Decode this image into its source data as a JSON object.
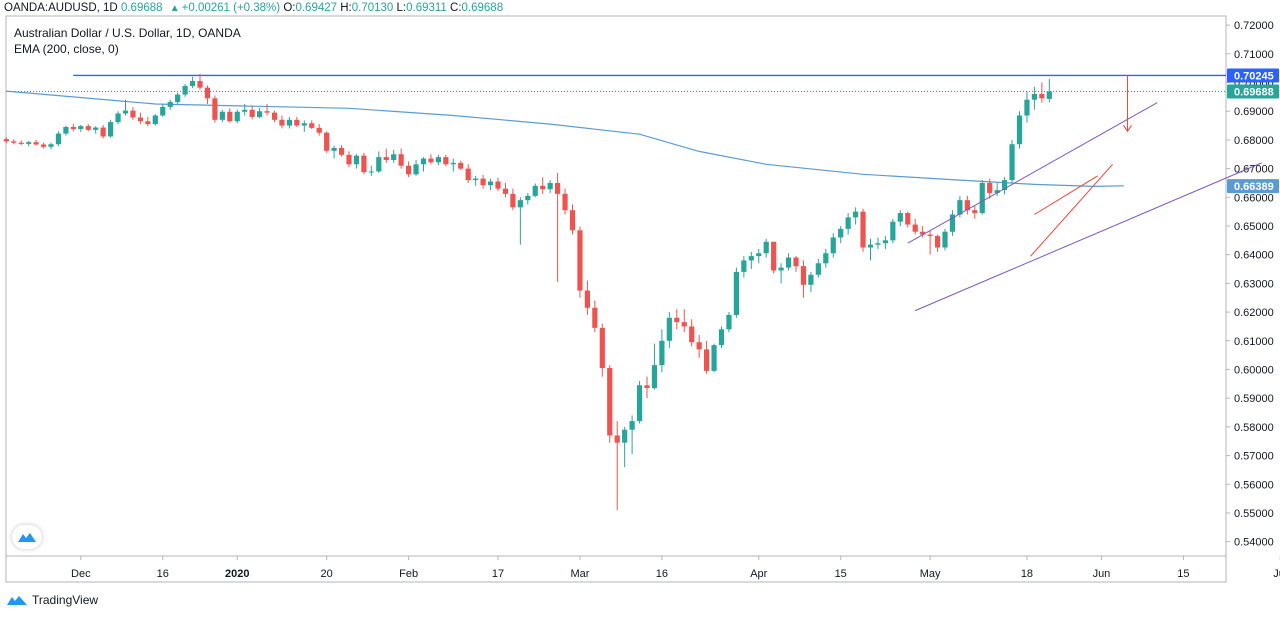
{
  "header": {
    "symbol": "OANDA:AUDUSD, 1D",
    "last": "0.69688",
    "change": "+0.00261 (+0.38%)",
    "o_label": "O:",
    "o": "0.69427",
    "h_label": "H:",
    "h": "0.70130",
    "l_label": "L:",
    "l": "0.69311",
    "c_label": "C:",
    "c": "0.69688"
  },
  "subtitle": "Australian Dollar / U.S. Dollar, 1D, OANDA",
  "ema_legend": "EMA (200, close, 0)",
  "footer": {
    "brand": "TradingView"
  },
  "colors": {
    "up": "#26a69a",
    "down": "#ef5350",
    "ema": "#5b9bd5",
    "hline": "#2962ff",
    "channel": "#7e57c2",
    "wedge": "#f44336",
    "grid": "#e0e3eb"
  },
  "chart_data": {
    "type": "candlestick",
    "ylim": [
      0.535,
      0.723
    ],
    "y_ticks": [
      "0.72000",
      "0.71000",
      "0.70000",
      "0.69000",
      "0.68000",
      "0.67000",
      "0.66000",
      "0.65000",
      "0.64000",
      "0.63000",
      "0.62000",
      "0.61000",
      "0.60000",
      "0.59000",
      "0.58000",
      "0.57000",
      "0.56000",
      "0.55000",
      "0.54000"
    ],
    "x_ticks": [
      {
        "label": "Dec",
        "i": 10
      },
      {
        "label": "16",
        "i": 21
      },
      {
        "label": "2020",
        "i": 31,
        "bold": true
      },
      {
        "label": "20",
        "i": 43
      },
      {
        "label": "Feb",
        "i": 54
      },
      {
        "label": "17",
        "i": 66
      },
      {
        "label": "Mar",
        "i": 77
      },
      {
        "label": "16",
        "i": 88
      },
      {
        "label": "Apr",
        "i": 101
      },
      {
        "label": "15",
        "i": 112
      },
      {
        "label": "May",
        "i": 124
      },
      {
        "label": "18",
        "i": 137
      },
      {
        "label": "Jun",
        "i": 147
      },
      {
        "label": "15",
        "i": 158
      },
      {
        "label": "Jul",
        "i": 171
      }
    ],
    "price_labels": [
      {
        "value": 0.70245,
        "text": "0.70245",
        "color": "#2962ff"
      },
      {
        "value": 0.69688,
        "text": "0.69688",
        "color": "#26a69a"
      },
      {
        "value": 0.66389,
        "text": "0.66389",
        "color": "#5b9bd5"
      }
    ],
    "horizontal_line": 0.70245,
    "last_price_line": 0.69688,
    "candles": [
      {
        "o": 0.6803,
        "h": 0.681,
        "l": 0.6788,
        "c": 0.6795
      },
      {
        "o": 0.6795,
        "h": 0.6802,
        "l": 0.6785,
        "c": 0.679
      },
      {
        "o": 0.679,
        "h": 0.6798,
        "l": 0.6782,
        "c": 0.6786
      },
      {
        "o": 0.6786,
        "h": 0.6796,
        "l": 0.6778,
        "c": 0.6792
      },
      {
        "o": 0.6792,
        "h": 0.68,
        "l": 0.678,
        "c": 0.6784
      },
      {
        "o": 0.6784,
        "h": 0.679,
        "l": 0.677,
        "c": 0.6776
      },
      {
        "o": 0.6776,
        "h": 0.679,
        "l": 0.6768,
        "c": 0.6785
      },
      {
        "o": 0.6785,
        "h": 0.683,
        "l": 0.6778,
        "c": 0.6822
      },
      {
        "o": 0.6822,
        "h": 0.685,
        "l": 0.6815,
        "c": 0.6845
      },
      {
        "o": 0.6845,
        "h": 0.6856,
        "l": 0.683,
        "c": 0.6838
      },
      {
        "o": 0.6838,
        "h": 0.6852,
        "l": 0.6828,
        "c": 0.6848
      },
      {
        "o": 0.6848,
        "h": 0.6855,
        "l": 0.683,
        "c": 0.6835
      },
      {
        "o": 0.6835,
        "h": 0.6848,
        "l": 0.6822,
        "c": 0.6843
      },
      {
        "o": 0.6843,
        "h": 0.6852,
        "l": 0.6805,
        "c": 0.6812
      },
      {
        "o": 0.6812,
        "h": 0.687,
        "l": 0.6808,
        "c": 0.6862
      },
      {
        "o": 0.6862,
        "h": 0.69,
        "l": 0.6855,
        "c": 0.6892
      },
      {
        "o": 0.6892,
        "h": 0.694,
        "l": 0.6885,
        "c": 0.6902
      },
      {
        "o": 0.6902,
        "h": 0.6915,
        "l": 0.687,
        "c": 0.6878
      },
      {
        "o": 0.6878,
        "h": 0.6895,
        "l": 0.6855,
        "c": 0.6865
      },
      {
        "o": 0.6865,
        "h": 0.688,
        "l": 0.6848,
        "c": 0.6855
      },
      {
        "o": 0.6855,
        "h": 0.689,
        "l": 0.685,
        "c": 0.6885
      },
      {
        "o": 0.6885,
        "h": 0.6925,
        "l": 0.688,
        "c": 0.6915
      },
      {
        "o": 0.6915,
        "h": 0.694,
        "l": 0.6905,
        "c": 0.6932
      },
      {
        "o": 0.6932,
        "h": 0.6965,
        "l": 0.6925,
        "c": 0.6958
      },
      {
        "o": 0.6958,
        "h": 0.6995,
        "l": 0.695,
        "c": 0.6988
      },
      {
        "o": 0.6988,
        "h": 0.702,
        "l": 0.698,
        "c": 0.7005
      },
      {
        "o": 0.7005,
        "h": 0.703,
        "l": 0.6975,
        "c": 0.6982
      },
      {
        "o": 0.6982,
        "h": 0.699,
        "l": 0.6925,
        "c": 0.6945
      },
      {
        "o": 0.6945,
        "h": 0.6955,
        "l": 0.686,
        "c": 0.687
      },
      {
        "o": 0.687,
        "h": 0.6905,
        "l": 0.6862,
        "c": 0.6898
      },
      {
        "o": 0.6898,
        "h": 0.691,
        "l": 0.686,
        "c": 0.6865
      },
      {
        "o": 0.6865,
        "h": 0.6905,
        "l": 0.6858,
        "c": 0.6898
      },
      {
        "o": 0.6898,
        "h": 0.6925,
        "l": 0.6885,
        "c": 0.6905
      },
      {
        "o": 0.6905,
        "h": 0.6918,
        "l": 0.6872,
        "c": 0.688
      },
      {
        "o": 0.688,
        "h": 0.6912,
        "l": 0.6875,
        "c": 0.69
      },
      {
        "o": 0.69,
        "h": 0.6925,
        "l": 0.6885,
        "c": 0.6895
      },
      {
        "o": 0.6895,
        "h": 0.6902,
        "l": 0.6862,
        "c": 0.687
      },
      {
        "o": 0.687,
        "h": 0.6885,
        "l": 0.684,
        "c": 0.685
      },
      {
        "o": 0.685,
        "h": 0.688,
        "l": 0.684,
        "c": 0.687
      },
      {
        "o": 0.687,
        "h": 0.688,
        "l": 0.6845,
        "c": 0.685
      },
      {
        "o": 0.685,
        "h": 0.6868,
        "l": 0.6828,
        "c": 0.6858
      },
      {
        "o": 0.6858,
        "h": 0.6868,
        "l": 0.6838,
        "c": 0.6842
      },
      {
        "o": 0.6842,
        "h": 0.6855,
        "l": 0.6815,
        "c": 0.6825
      },
      {
        "o": 0.6825,
        "h": 0.683,
        "l": 0.6755,
        "c": 0.6762
      },
      {
        "o": 0.6762,
        "h": 0.678,
        "l": 0.6735,
        "c": 0.6772
      },
      {
        "o": 0.6772,
        "h": 0.6782,
        "l": 0.6742,
        "c": 0.6748
      },
      {
        "o": 0.6748,
        "h": 0.676,
        "l": 0.6705,
        "c": 0.6715
      },
      {
        "o": 0.6715,
        "h": 0.675,
        "l": 0.67,
        "c": 0.6745
      },
      {
        "o": 0.6745,
        "h": 0.6755,
        "l": 0.668,
        "c": 0.6688
      },
      {
        "o": 0.6688,
        "h": 0.671,
        "l": 0.6675,
        "c": 0.669
      },
      {
        "o": 0.669,
        "h": 0.676,
        "l": 0.6685,
        "c": 0.674
      },
      {
        "o": 0.674,
        "h": 0.677,
        "l": 0.672,
        "c": 0.673
      },
      {
        "o": 0.673,
        "h": 0.6765,
        "l": 0.672,
        "c": 0.675
      },
      {
        "o": 0.675,
        "h": 0.677,
        "l": 0.67,
        "c": 0.671
      },
      {
        "o": 0.671,
        "h": 0.6725,
        "l": 0.667,
        "c": 0.668
      },
      {
        "o": 0.668,
        "h": 0.673,
        "l": 0.6675,
        "c": 0.6715
      },
      {
        "o": 0.6715,
        "h": 0.674,
        "l": 0.669,
        "c": 0.6735
      },
      {
        "o": 0.6735,
        "h": 0.675,
        "l": 0.6715,
        "c": 0.6722
      },
      {
        "o": 0.6722,
        "h": 0.6748,
        "l": 0.6712,
        "c": 0.674
      },
      {
        "o": 0.674,
        "h": 0.6748,
        "l": 0.6708,
        "c": 0.6715
      },
      {
        "o": 0.6715,
        "h": 0.6735,
        "l": 0.669,
        "c": 0.672
      },
      {
        "o": 0.672,
        "h": 0.6728,
        "l": 0.6695,
        "c": 0.67
      },
      {
        "o": 0.67,
        "h": 0.6715,
        "l": 0.665,
        "c": 0.666
      },
      {
        "o": 0.666,
        "h": 0.6675,
        "l": 0.664,
        "c": 0.6665
      },
      {
        "o": 0.6665,
        "h": 0.6678,
        "l": 0.663,
        "c": 0.6642
      },
      {
        "o": 0.6642,
        "h": 0.6665,
        "l": 0.6625,
        "c": 0.6655
      },
      {
        "o": 0.6655,
        "h": 0.6668,
        "l": 0.6622,
        "c": 0.663
      },
      {
        "o": 0.663,
        "h": 0.665,
        "l": 0.66,
        "c": 0.6612
      },
      {
        "o": 0.6612,
        "h": 0.663,
        "l": 0.6555,
        "c": 0.6565
      },
      {
        "o": 0.6565,
        "h": 0.66,
        "l": 0.6435,
        "c": 0.659
      },
      {
        "o": 0.659,
        "h": 0.6615,
        "l": 0.6575,
        "c": 0.6605
      },
      {
        "o": 0.6605,
        "h": 0.6648,
        "l": 0.66,
        "c": 0.664
      },
      {
        "o": 0.664,
        "h": 0.667,
        "l": 0.6612,
        "c": 0.6628
      },
      {
        "o": 0.6628,
        "h": 0.666,
        "l": 0.6615,
        "c": 0.665
      },
      {
        "o": 0.665,
        "h": 0.6685,
        "l": 0.6305,
        "c": 0.6612
      },
      {
        "o": 0.6612,
        "h": 0.663,
        "l": 0.654,
        "c": 0.6555
      },
      {
        "o": 0.6555,
        "h": 0.6575,
        "l": 0.647,
        "c": 0.6485
      },
      {
        "o": 0.6485,
        "h": 0.6498,
        "l": 0.625,
        "c": 0.6275
      },
      {
        "o": 0.6275,
        "h": 0.631,
        "l": 0.619,
        "c": 0.6215
      },
      {
        "o": 0.6215,
        "h": 0.624,
        "l": 0.613,
        "c": 0.6145
      },
      {
        "o": 0.6145,
        "h": 0.616,
        "l": 0.5975,
        "c": 0.6005
      },
      {
        "o": 0.6005,
        "h": 0.6015,
        "l": 0.5745,
        "c": 0.577
      },
      {
        "o": 0.577,
        "h": 0.582,
        "l": 0.551,
        "c": 0.5745
      },
      {
        "o": 0.5745,
        "h": 0.58,
        "l": 0.566,
        "c": 0.579
      },
      {
        "o": 0.579,
        "h": 0.584,
        "l": 0.5705,
        "c": 0.582
      },
      {
        "o": 0.582,
        "h": 0.596,
        "l": 0.5812,
        "c": 0.5945
      },
      {
        "o": 0.5945,
        "h": 0.5975,
        "l": 0.59,
        "c": 0.5935
      },
      {
        "o": 0.5935,
        "h": 0.609,
        "l": 0.593,
        "c": 0.6015
      },
      {
        "o": 0.6015,
        "h": 0.614,
        "l": 0.599,
        "c": 0.61
      },
      {
        "o": 0.61,
        "h": 0.62,
        "l": 0.6075,
        "c": 0.618
      },
      {
        "o": 0.618,
        "h": 0.621,
        "l": 0.614,
        "c": 0.6165
      },
      {
        "o": 0.6165,
        "h": 0.621,
        "l": 0.613,
        "c": 0.615
      },
      {
        "o": 0.615,
        "h": 0.6175,
        "l": 0.608,
        "c": 0.6095
      },
      {
        "o": 0.6095,
        "h": 0.612,
        "l": 0.604,
        "c": 0.607
      },
      {
        "o": 0.607,
        "h": 0.61,
        "l": 0.5985,
        "c": 0.5995
      },
      {
        "o": 0.5995,
        "h": 0.609,
        "l": 0.599,
        "c": 0.6085
      },
      {
        "o": 0.6085,
        "h": 0.615,
        "l": 0.6075,
        "c": 0.614
      },
      {
        "o": 0.614,
        "h": 0.62,
        "l": 0.613,
        "c": 0.619
      },
      {
        "o": 0.619,
        "h": 0.6355,
        "l": 0.618,
        "c": 0.634
      },
      {
        "o": 0.634,
        "h": 0.6395,
        "l": 0.632,
        "c": 0.638
      },
      {
        "o": 0.638,
        "h": 0.641,
        "l": 0.635,
        "c": 0.6395
      },
      {
        "o": 0.6395,
        "h": 0.642,
        "l": 0.637,
        "c": 0.6405
      },
      {
        "o": 0.6405,
        "h": 0.6455,
        "l": 0.639,
        "c": 0.6445
      },
      {
        "o": 0.6445,
        "h": 0.6445,
        "l": 0.6335,
        "c": 0.6345
      },
      {
        "o": 0.6345,
        "h": 0.637,
        "l": 0.63,
        "c": 0.6355
      },
      {
        "o": 0.6355,
        "h": 0.6405,
        "l": 0.6345,
        "c": 0.639
      },
      {
        "o": 0.639,
        "h": 0.6395,
        "l": 0.634,
        "c": 0.636
      },
      {
        "o": 0.636,
        "h": 0.638,
        "l": 0.625,
        "c": 0.6295
      },
      {
        "o": 0.6295,
        "h": 0.634,
        "l": 0.627,
        "c": 0.633
      },
      {
        "o": 0.633,
        "h": 0.6385,
        "l": 0.632,
        "c": 0.637
      },
      {
        "o": 0.637,
        "h": 0.642,
        "l": 0.6355,
        "c": 0.6405
      },
      {
        "o": 0.6405,
        "h": 0.6475,
        "l": 0.639,
        "c": 0.646
      },
      {
        "o": 0.646,
        "h": 0.65,
        "l": 0.644,
        "c": 0.649
      },
      {
        "o": 0.649,
        "h": 0.6545,
        "l": 0.647,
        "c": 0.653
      },
      {
        "o": 0.653,
        "h": 0.6565,
        "l": 0.6505,
        "c": 0.655
      },
      {
        "o": 0.655,
        "h": 0.656,
        "l": 0.641,
        "c": 0.6425
      },
      {
        "o": 0.6425,
        "h": 0.6455,
        "l": 0.638,
        "c": 0.6435
      },
      {
        "o": 0.6435,
        "h": 0.646,
        "l": 0.642,
        "c": 0.644
      },
      {
        "o": 0.644,
        "h": 0.6465,
        "l": 0.642,
        "c": 0.645
      },
      {
        "o": 0.645,
        "h": 0.6525,
        "l": 0.644,
        "c": 0.6515
      },
      {
        "o": 0.6515,
        "h": 0.6555,
        "l": 0.65,
        "c": 0.6545
      },
      {
        "o": 0.6545,
        "h": 0.655,
        "l": 0.6495,
        "c": 0.6505
      },
      {
        "o": 0.6505,
        "h": 0.6525,
        "l": 0.647,
        "c": 0.648
      },
      {
        "o": 0.648,
        "h": 0.65,
        "l": 0.646,
        "c": 0.647
      },
      {
        "o": 0.647,
        "h": 0.6485,
        "l": 0.64,
        "c": 0.6465
      },
      {
        "o": 0.6465,
        "h": 0.647,
        "l": 0.641,
        "c": 0.6425
      },
      {
        "o": 0.6425,
        "h": 0.649,
        "l": 0.6415,
        "c": 0.648
      },
      {
        "o": 0.648,
        "h": 0.6555,
        "l": 0.6465,
        "c": 0.654
      },
      {
        "o": 0.654,
        "h": 0.6605,
        "l": 0.653,
        "c": 0.659
      },
      {
        "o": 0.659,
        "h": 0.6605,
        "l": 0.654,
        "c": 0.6555
      },
      {
        "o": 0.6555,
        "h": 0.657,
        "l": 0.6525,
        "c": 0.6545
      },
      {
        "o": 0.6545,
        "h": 0.666,
        "l": 0.654,
        "c": 0.665
      },
      {
        "o": 0.665,
        "h": 0.6665,
        "l": 0.6595,
        "c": 0.6615
      },
      {
        "o": 0.6615,
        "h": 0.665,
        "l": 0.6605,
        "c": 0.6625
      },
      {
        "o": 0.6625,
        "h": 0.667,
        "l": 0.661,
        "c": 0.666
      },
      {
        "o": 0.666,
        "h": 0.68,
        "l": 0.665,
        "c": 0.6785
      },
      {
        "o": 0.6785,
        "h": 0.69,
        "l": 0.677,
        "c": 0.6885
      },
      {
        "o": 0.6885,
        "h": 0.697,
        "l": 0.686,
        "c": 0.694
      },
      {
        "o": 0.694,
        "h": 0.6985,
        "l": 0.6905,
        "c": 0.696
      },
      {
        "o": 0.696,
        "h": 0.7,
        "l": 0.693,
        "c": 0.6945
      },
      {
        "o": 0.6943,
        "h": 0.7013,
        "l": 0.6931,
        "c": 0.6969
      }
    ],
    "ema200": [
      {
        "i": 0,
        "v": 0.697
      },
      {
        "i": 20,
        "v": 0.6925
      },
      {
        "i": 32,
        "v": 0.6918
      },
      {
        "i": 46,
        "v": 0.691
      },
      {
        "i": 60,
        "v": 0.6885
      },
      {
        "i": 73,
        "v": 0.6855
      },
      {
        "i": 85,
        "v": 0.682
      },
      {
        "i": 93,
        "v": 0.676
      },
      {
        "i": 102,
        "v": 0.6715
      },
      {
        "i": 115,
        "v": 0.668
      },
      {
        "i": 128,
        "v": 0.666
      },
      {
        "i": 138,
        "v": 0.6645
      },
      {
        "i": 146,
        "v": 0.6638
      },
      {
        "i": 150,
        "v": 0.664
      }
    ],
    "trendlines": [
      {
        "name": "channel-upper-line",
        "color": "#7e57c2",
        "x1": 121.0,
        "y1": 0.644,
        "x2": 154.5,
        "y2": 0.693
      },
      {
        "name": "channel-lower-line",
        "color": "#7e57c2",
        "x1": 122.0,
        "y1": 0.6205,
        "x2": 168.5,
        "y2": 0.672
      },
      {
        "name": "wedge-upper-line",
        "color": "#f44336",
        "x1": 138.0,
        "y1": 0.654,
        "x2": 146.5,
        "y2": 0.6675
      },
      {
        "name": "wedge-lower-line",
        "color": "#f44336",
        "x1": 137.5,
        "y1": 0.6395,
        "x2": 148.5,
        "y2": 0.6715
      },
      {
        "name": "drop-arrow",
        "color": "#f44336",
        "x1": 150.5,
        "y1": 0.7025,
        "x2": 150.5,
        "y2": 0.683
      }
    ]
  }
}
